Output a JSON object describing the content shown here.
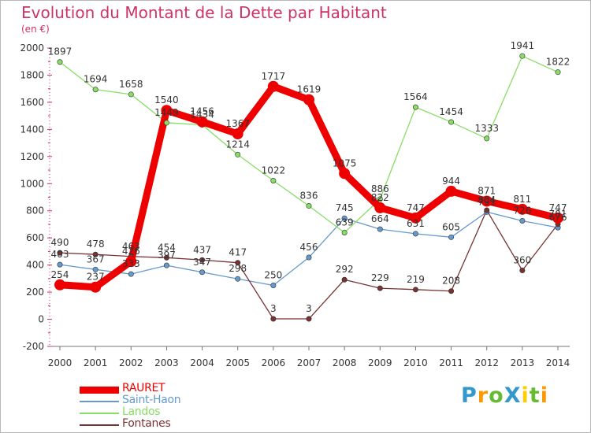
{
  "title": "Evolution du Montant de la Dette par Habitant",
  "unit_label": "(en €)",
  "logo": {
    "text": "ProXiti",
    "colors": [
      "#3399cc",
      "#ff9900",
      "#66bb33",
      "#3399cc",
      "#ffcc00",
      "#66bb33",
      "#ff9900"
    ]
  },
  "chart_data": {
    "type": "line",
    "title": "Evolution du Montant de la Dette par Habitant",
    "ylabel": "(en €)",
    "xlabel": "",
    "x": [
      "2000",
      "2001",
      "2002",
      "2003",
      "2004",
      "2005",
      "2006",
      "2007",
      "2008",
      "2009",
      "2010",
      "2011",
      "2012",
      "2013",
      "2014"
    ],
    "ylim": [
      -200,
      2000
    ],
    "yticks": [
      "-200",
      "0",
      "200",
      "400",
      "600",
      "800",
      "1000",
      "1200",
      "1400",
      "1600",
      "1800",
      "2000"
    ],
    "grid": false,
    "legend_position": "bottom-left",
    "series": [
      {
        "name": "RAURET",
        "color": "#ee0000",
        "values": [
          254,
          237,
          426,
          1540,
          1456,
          1367,
          1717,
          1619,
          1075,
          822,
          747,
          944,
          871,
          811,
          747
        ],
        "labels": [
          "254",
          "237",
          "426",
          "1540",
          "1456",
          "1367",
          "1717",
          "1619",
          "1075",
          "822",
          "747",
          "944",
          "871",
          "811",
          "747"
        ]
      },
      {
        "name": "Saint-Haon",
        "color": "#6699cc",
        "values": [
          403,
          367,
          333,
          397,
          347,
          298,
          250,
          456,
          745,
          664,
          631,
          605,
          791,
          726,
          676
        ],
        "labels": [
          "403",
          "367",
          "333",
          "397",
          "347",
          "298",
          "250",
          "456",
          "745",
          "664",
          "631",
          "605",
          "791",
          "726",
          "676"
        ]
      },
      {
        "name": "Landos",
        "color": "#88dd66",
        "values": [
          1897,
          1694,
          1658,
          1449,
          1434,
          1214,
          1022,
          836,
          639,
          886,
          1564,
          1454,
          1333,
          1941,
          1822
        ],
        "labels": [
          "1897",
          "1694",
          "1658",
          "1449",
          "1434",
          "1214",
          "1022",
          "836",
          "639",
          "886",
          "1564",
          "1454",
          "1333",
          "1941",
          "1822"
        ]
      },
      {
        "name": "Fontanes",
        "color": "#773333",
        "values": [
          490,
          478,
          463,
          454,
          437,
          417,
          3,
          3,
          292,
          229,
          219,
          208,
          804,
          360,
          701
        ],
        "labels": [
          "490",
          "478",
          "463",
          "454",
          "437",
          "417",
          "3",
          "3",
          "292",
          "229",
          "219",
          "208",
          "804",
          "360",
          "701"
        ]
      }
    ]
  }
}
